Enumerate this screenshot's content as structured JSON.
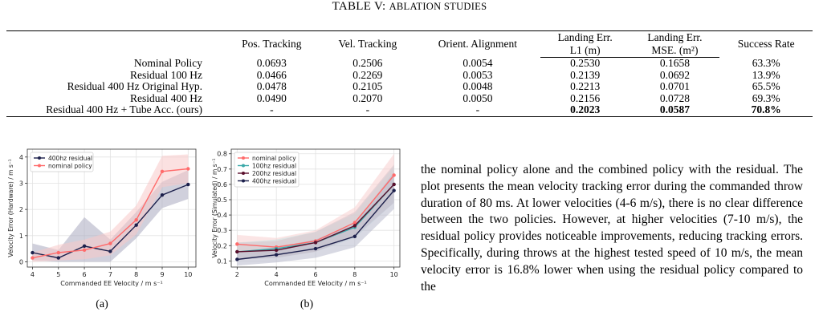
{
  "table": {
    "caption_prefix": "TABLE V:",
    "caption_title": "Ablation Studies",
    "headers": [
      "",
      "Pos. Tracking",
      "Vel. Tracking",
      "Orient. Alignment",
      "Landing Err. L1 (m)",
      "Landing Err. MSE. (m²)",
      "Success Rate"
    ],
    "header_lines": {
      "landing_l1": [
        "Landing Err.",
        "L1 (m)"
      ],
      "landing_mse": [
        "Landing Err.",
        "MSE. (m²)"
      ]
    },
    "rows": [
      [
        "Nominal Policy",
        "0.0693",
        "0.2506",
        "0.0054",
        "0.2530",
        "0.1658",
        "63.3%"
      ],
      [
        "Residual 100 Hz",
        "0.0466",
        "0.2269",
        "0.0053",
        "0.2139",
        "0.0692",
        "13.9%"
      ],
      [
        "Residual 400 Hz Original Hyp.",
        "0.0478",
        "0.2105",
        "0.0048",
        "0.2213",
        "0.0701",
        "65.5%"
      ],
      [
        "Residual 400 Hz",
        "0.0490",
        "0.2070",
        "0.0050",
        "0.2156",
        "0.0728",
        "69.3%"
      ],
      [
        "Residual 400 Hz + Tube Acc. (ours)",
        "-",
        "-",
        "-",
        "0.2023",
        "0.0587",
        "70.8%"
      ]
    ]
  },
  "chart_data": [
    {
      "type": "line",
      "panel_label": "(a)",
      "xlabel": "Commanded EE Velocity / m s⁻¹",
      "ylabel": "Velocity Error (Hardware) / m s⁻¹",
      "xlim": [
        3.8,
        10.3
      ],
      "ylim": [
        -0.2,
        4.3
      ],
      "xticks": [
        "4",
        "5",
        "6",
        "7",
        "8",
        "9",
        "10"
      ],
      "yticks": [
        "0",
        "1",
        "2",
        "3",
        "4"
      ],
      "grid": true,
      "legend": "top-left",
      "x": [
        4,
        5,
        6,
        7,
        8,
        9,
        10
      ],
      "series": [
        {
          "name": "400hz residual",
          "color": "#1b1f4b",
          "band": "#a9a9bf",
          "values": [
            0.35,
            0.15,
            0.6,
            0.4,
            1.4,
            2.55,
            2.95
          ],
          "lower": [
            0.05,
            0.0,
            0.0,
            0.0,
            0.9,
            2.05,
            2.4
          ],
          "upper": [
            0.7,
            0.45,
            1.7,
            0.85,
            1.9,
            3.05,
            3.5
          ]
        },
        {
          "name": "nominal policy",
          "color": "#ff6b6b",
          "band": "#f7c8c8",
          "values": [
            0.15,
            0.35,
            0.45,
            0.7,
            1.6,
            3.45,
            3.55
          ],
          "lower": [
            0.0,
            0.05,
            0.1,
            0.25,
            1.05,
            2.85,
            3.0
          ],
          "upper": [
            0.35,
            0.65,
            0.85,
            1.15,
            2.15,
            4.05,
            4.1
          ]
        }
      ]
    },
    {
      "type": "line",
      "panel_label": "(b)",
      "xlabel": "Commanded EE Velocity / m s⁻¹",
      "ylabel": "Velocity Error (Simulated) / m s⁻¹",
      "xlim": [
        1.7,
        10.3
      ],
      "ylim": [
        0.06,
        0.83
      ],
      "xticks": [
        "2",
        "4",
        "6",
        "8",
        "10"
      ],
      "yticks": [
        "0.1",
        "0.2",
        "0.3",
        "0.4",
        "0.5",
        "0.6",
        "0.7",
        "0.8"
      ],
      "grid": true,
      "legend": "top-left",
      "x": [
        2,
        4,
        6,
        8,
        10
      ],
      "series": [
        {
          "name": "nominal policy",
          "color": "#ff6b6b",
          "band": "#f7cfcf",
          "values": [
            0.21,
            0.19,
            0.23,
            0.35,
            0.66
          ],
          "lower": [
            0.15,
            0.13,
            0.16,
            0.27,
            0.52
          ],
          "upper": [
            0.27,
            0.25,
            0.3,
            0.45,
            0.8
          ]
        },
        {
          "name": "100hz residual",
          "color": "#3aa8a8",
          "band": "#c6e4e4",
          "values": [
            0.16,
            0.18,
            0.22,
            0.32,
            0.6
          ],
          "lower": [
            0.11,
            0.12,
            0.16,
            0.25,
            0.48
          ],
          "upper": [
            0.22,
            0.24,
            0.29,
            0.41,
            0.72
          ]
        },
        {
          "name": "200hz residual",
          "color": "#5a0f2c",
          "band": "#d8c3cb",
          "values": [
            0.16,
            0.17,
            0.22,
            0.33,
            0.6
          ],
          "lower": [
            0.11,
            0.12,
            0.16,
            0.26,
            0.48
          ],
          "upper": [
            0.22,
            0.23,
            0.29,
            0.42,
            0.73
          ]
        },
        {
          "name": "400hz residual",
          "color": "#1b1f4b",
          "band": "#b8b9cc",
          "values": [
            0.11,
            0.14,
            0.18,
            0.26,
            0.56
          ],
          "lower": [
            0.07,
            0.09,
            0.12,
            0.19,
            0.44
          ],
          "upper": [
            0.16,
            0.19,
            0.24,
            0.34,
            0.68
          ]
        }
      ]
    }
  ],
  "body_text": "the nominal policy alone and the combined policy with the residual. The plot presents the mean velocity tracking error during the commanded throw duration of 80 ms. At lower velocities (4-6 m/s), there is no clear difference between the two policies. However, at higher velocities (7-10 m/s), the residual policy provides noticeable improvements, reducing tracking errors. Specifically, during throws at the highest tested speed of 10 m/s, the mean velocity error is 16.8% lower when using the residual policy compared to the"
}
